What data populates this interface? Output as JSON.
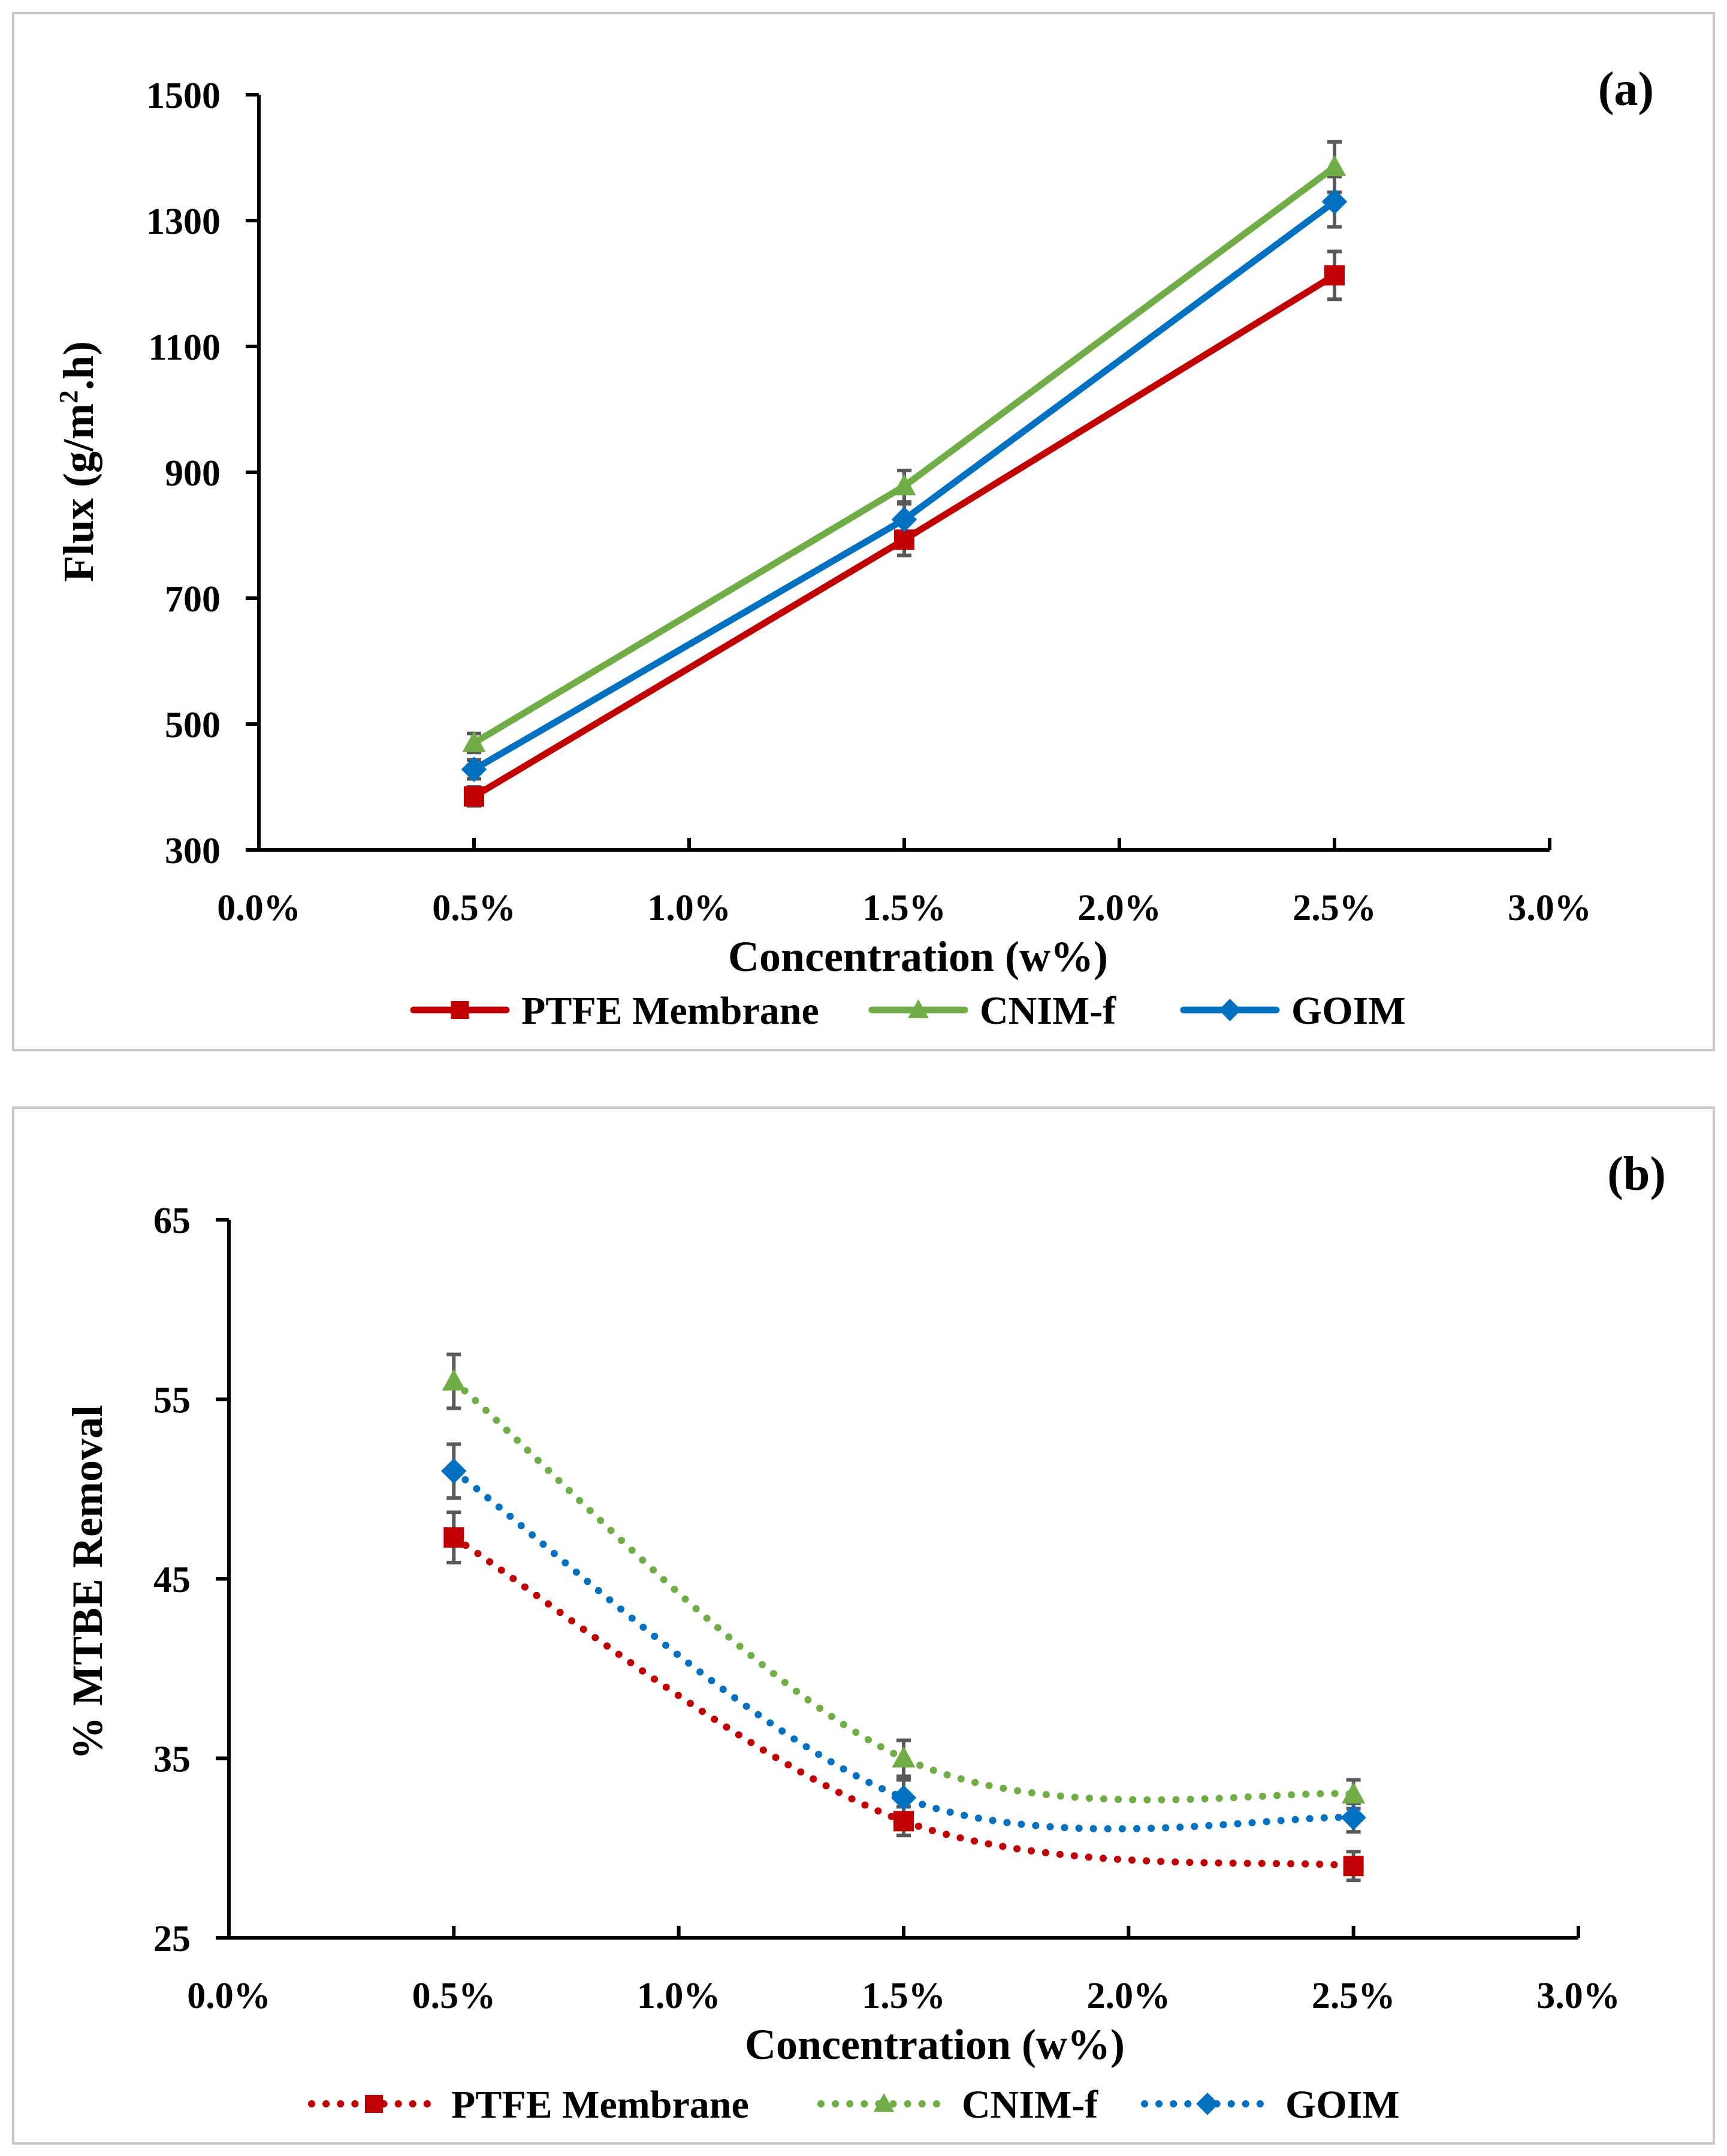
{
  "chart_data": [
    {
      "type": "line",
      "panel_label": "(a)",
      "xlabel": "Concentration (w%)",
      "ylabel": "Flux (g/m².h)",
      "ylabel_main": "Flux (g/m",
      "ylabel_sup": "2",
      "ylabel_tail": ".h)",
      "xlim": [
        0,
        3.0
      ],
      "ylim": [
        300,
        1500
      ],
      "x_ticks": [
        "0.0%",
        "0.5%",
        "1.0%",
        "1.5%",
        "2.0%",
        "2.5%",
        "3.0%"
      ],
      "y_ticks": [
        "300",
        "500",
        "700",
        "900",
        "1100",
        "1300",
        "1500"
      ],
      "x": [
        0.5,
        1.5,
        2.5
      ],
      "series": [
        {
          "name": "PTFE Membrane",
          "color": "#c00000",
          "marker": "square",
          "values": [
            385,
            793,
            1213
          ],
          "errors": [
            15,
            25,
            38
          ]
        },
        {
          "name": "CNIM-f",
          "color": "#70ad47",
          "marker": "triangle",
          "values": [
            470,
            878,
            1385
          ],
          "errors": [
            15,
            25,
            40
          ]
        },
        {
          "name": "GOIM",
          "color": "#0070c0",
          "marker": "diamond",
          "values": [
            428,
            825,
            1330
          ],
          "errors": [
            15,
            25,
            40
          ]
        }
      ],
      "line_style": "solid",
      "legend": "bottom"
    },
    {
      "type": "line",
      "panel_label": "(b)",
      "xlabel": "Concentration (w%)",
      "ylabel": "% MTBE Removal",
      "xlim": [
        0,
        3.0
      ],
      "ylim": [
        25,
        65
      ],
      "x_ticks": [
        "0.0%",
        "0.5%",
        "1.0%",
        "1.5%",
        "2.0%",
        "2.5%",
        "3.0%"
      ],
      "y_ticks": [
        "25",
        "35",
        "45",
        "55",
        "65"
      ],
      "x": [
        0.5,
        1.5,
        2.5
      ],
      "series": [
        {
          "name": "PTFE Membrane",
          "color": "#c00000",
          "marker": "square",
          "values": [
            47.3,
            31.5,
            29.0
          ],
          "errors": [
            1.4,
            0.8,
            0.8
          ]
        },
        {
          "name": "CNIM-f",
          "color": "#70ad47",
          "marker": "triangle",
          "values": [
            56.0,
            35.0,
            33.0
          ],
          "errors": [
            1.5,
            1.0,
            0.8
          ]
        },
        {
          "name": "GOIM",
          "color": "#0070c0",
          "marker": "diamond",
          "values": [
            51.0,
            32.8,
            31.7
          ],
          "errors": [
            1.5,
            1.0,
            0.8
          ]
        }
      ],
      "line_style": "dotted-smoothed",
      "legend": "bottom"
    }
  ]
}
